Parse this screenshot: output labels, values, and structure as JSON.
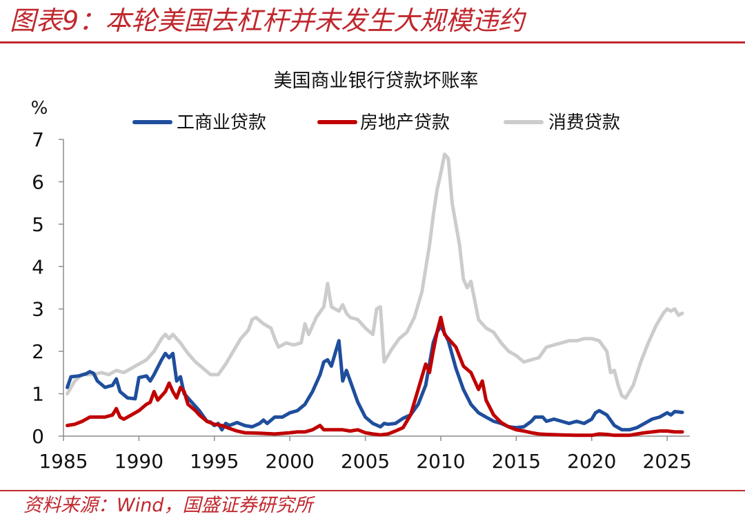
{
  "header": {
    "title": "图表9：本轮美国去杠杆并未发生大规模违约"
  },
  "footer": {
    "source": "资料来源：Wind，国盛证券研究所"
  },
  "chart_data": {
    "type": "line",
    "title": "美国商业银行贷款坏账率",
    "ylabel": "%",
    "xlabel": "",
    "xlim": [
      1985,
      2026.5
    ],
    "ylim": [
      0,
      7
    ],
    "xticks": [
      1985,
      1990,
      1995,
      2000,
      2005,
      2010,
      2015,
      2020,
      2025
    ],
    "yticks": [
      0,
      1,
      2,
      3,
      4,
      5,
      6,
      7
    ],
    "legend_position": "top",
    "grid": false,
    "series": [
      {
        "name": "工商业贷款",
        "color": "#1f4e9c",
        "points": [
          [
            1985.25,
            1.15
          ],
          [
            1985.5,
            1.4
          ],
          [
            1986.0,
            1.42
          ],
          [
            1986.5,
            1.47
          ],
          [
            1986.75,
            1.52
          ],
          [
            1987.0,
            1.48
          ],
          [
            1987.25,
            1.3
          ],
          [
            1987.75,
            1.15
          ],
          [
            1988.25,
            1.2
          ],
          [
            1988.5,
            1.35
          ],
          [
            1988.75,
            1.05
          ],
          [
            1989.25,
            0.9
          ],
          [
            1989.75,
            0.88
          ],
          [
            1990.0,
            1.38
          ],
          [
            1990.5,
            1.42
          ],
          [
            1990.75,
            1.3
          ],
          [
            1991.0,
            1.45
          ],
          [
            1991.5,
            1.8
          ],
          [
            1991.75,
            1.95
          ],
          [
            1992.0,
            1.85
          ],
          [
            1992.25,
            1.95
          ],
          [
            1992.5,
            1.3
          ],
          [
            1992.75,
            1.4
          ],
          [
            1993.0,
            1.0
          ],
          [
            1993.5,
            0.8
          ],
          [
            1994.0,
            0.6
          ],
          [
            1994.5,
            0.35
          ],
          [
            1994.75,
            0.33
          ],
          [
            1995.0,
            0.25
          ],
          [
            1995.25,
            0.3
          ],
          [
            1995.5,
            0.15
          ],
          [
            1995.75,
            0.3
          ],
          [
            1996.0,
            0.25
          ],
          [
            1996.5,
            0.32
          ],
          [
            1997.0,
            0.25
          ],
          [
            1997.5,
            0.22
          ],
          [
            1998.0,
            0.3
          ],
          [
            1998.25,
            0.38
          ],
          [
            1998.5,
            0.3
          ],
          [
            1999.0,
            0.45
          ],
          [
            1999.5,
            0.45
          ],
          [
            2000.0,
            0.55
          ],
          [
            2000.5,
            0.6
          ],
          [
            2001.0,
            0.75
          ],
          [
            2001.5,
            1.05
          ],
          [
            2002.0,
            1.45
          ],
          [
            2002.25,
            1.75
          ],
          [
            2002.5,
            1.8
          ],
          [
            2002.75,
            1.65
          ],
          [
            2003.0,
            1.95
          ],
          [
            2003.25,
            2.25
          ],
          [
            2003.5,
            1.3
          ],
          [
            2003.75,
            1.55
          ],
          [
            2004.0,
            1.3
          ],
          [
            2004.25,
            1.05
          ],
          [
            2004.5,
            0.8
          ],
          [
            2005.0,
            0.45
          ],
          [
            2005.5,
            0.3
          ],
          [
            2006.0,
            0.22
          ],
          [
            2006.25,
            0.3
          ],
          [
            2006.5,
            0.28
          ],
          [
            2007.0,
            0.3
          ],
          [
            2007.5,
            0.42
          ],
          [
            2008.0,
            0.5
          ],
          [
            2008.5,
            0.75
          ],
          [
            2009.0,
            1.2
          ],
          [
            2009.5,
            2.2
          ],
          [
            2009.75,
            2.45
          ],
          [
            2010.0,
            2.6
          ],
          [
            2010.5,
            2.25
          ],
          [
            2011.0,
            1.6
          ],
          [
            2011.5,
            1.1
          ],
          [
            2012.0,
            0.75
          ],
          [
            2012.5,
            0.55
          ],
          [
            2013.0,
            0.45
          ],
          [
            2013.5,
            0.35
          ],
          [
            2014.0,
            0.3
          ],
          [
            2014.5,
            0.22
          ],
          [
            2015.0,
            0.2
          ],
          [
            2015.5,
            0.22
          ],
          [
            2016.0,
            0.35
          ],
          [
            2016.25,
            0.45
          ],
          [
            2016.75,
            0.45
          ],
          [
            2017.0,
            0.35
          ],
          [
            2017.5,
            0.4
          ],
          [
            2018.0,
            0.35
          ],
          [
            2018.5,
            0.3
          ],
          [
            2019.0,
            0.35
          ],
          [
            2019.5,
            0.3
          ],
          [
            2020.0,
            0.4
          ],
          [
            2020.25,
            0.55
          ],
          [
            2020.5,
            0.6
          ],
          [
            2021.0,
            0.5
          ],
          [
            2021.5,
            0.25
          ],
          [
            2022.0,
            0.15
          ],
          [
            2022.5,
            0.15
          ],
          [
            2023.0,
            0.2
          ],
          [
            2023.5,
            0.3
          ],
          [
            2024.0,
            0.4
          ],
          [
            2024.5,
            0.45
          ],
          [
            2025.0,
            0.55
          ],
          [
            2025.25,
            0.5
          ],
          [
            2025.5,
            0.58
          ],
          [
            2026.0,
            0.56
          ]
        ]
      },
      {
        "name": "房地产贷款",
        "color": "#c00000",
        "points": [
          [
            1985.25,
            0.25
          ],
          [
            1985.75,
            0.28
          ],
          [
            1986.25,
            0.35
          ],
          [
            1986.75,
            0.45
          ],
          [
            1987.25,
            0.45
          ],
          [
            1987.75,
            0.45
          ],
          [
            1988.25,
            0.5
          ],
          [
            1988.5,
            0.65
          ],
          [
            1988.75,
            0.45
          ],
          [
            1989.0,
            0.4
          ],
          [
            1989.5,
            0.5
          ],
          [
            1990.0,
            0.6
          ],
          [
            1990.5,
            0.75
          ],
          [
            1990.75,
            0.8
          ],
          [
            1991.0,
            1.05
          ],
          [
            1991.25,
            0.85
          ],
          [
            1991.75,
            1.05
          ],
          [
            1992.0,
            1.25
          ],
          [
            1992.25,
            1.05
          ],
          [
            1992.5,
            0.9
          ],
          [
            1992.75,
            1.15
          ],
          [
            1993.0,
            1.05
          ],
          [
            1993.25,
            0.75
          ],
          [
            1993.75,
            0.6
          ],
          [
            1994.0,
            0.5
          ],
          [
            1994.5,
            0.35
          ],
          [
            1995.0,
            0.28
          ],
          [
            1995.5,
            0.25
          ],
          [
            1996.0,
            0.18
          ],
          [
            1996.5,
            0.12
          ],
          [
            1997.0,
            0.08
          ],
          [
            1998.0,
            0.07
          ],
          [
            1999.0,
            0.05
          ],
          [
            2000.0,
            0.08
          ],
          [
            2000.5,
            0.1
          ],
          [
            2001.0,
            0.1
          ],
          [
            2001.5,
            0.15
          ],
          [
            2002.0,
            0.25
          ],
          [
            2002.25,
            0.15
          ],
          [
            2003.0,
            0.15
          ],
          [
            2003.5,
            0.15
          ],
          [
            2004.0,
            0.12
          ],
          [
            2004.5,
            0.15
          ],
          [
            2005.0,
            0.08
          ],
          [
            2005.5,
            0.05
          ],
          [
            2006.0,
            0.03
          ],
          [
            2006.5,
            0.05
          ],
          [
            2007.0,
            0.12
          ],
          [
            2007.5,
            0.2
          ],
          [
            2008.0,
            0.5
          ],
          [
            2008.5,
            1.1
          ],
          [
            2009.0,
            1.7
          ],
          [
            2009.25,
            1.5
          ],
          [
            2009.5,
            2.0
          ],
          [
            2009.75,
            2.45
          ],
          [
            2010.0,
            2.8
          ],
          [
            2010.25,
            2.4
          ],
          [
            2010.75,
            2.2
          ],
          [
            2011.0,
            2.1
          ],
          [
            2011.5,
            1.65
          ],
          [
            2012.0,
            1.5
          ],
          [
            2012.5,
            1.1
          ],
          [
            2012.75,
            1.3
          ],
          [
            2013.0,
            0.85
          ],
          [
            2013.5,
            0.5
          ],
          [
            2014.0,
            0.32
          ],
          [
            2014.5,
            0.22
          ],
          [
            2015.0,
            0.15
          ],
          [
            2015.5,
            0.12
          ],
          [
            2016.0,
            0.08
          ],
          [
            2016.5,
            0.05
          ],
          [
            2017.0,
            0.04
          ],
          [
            2018.0,
            0.03
          ],
          [
            2019.0,
            0.02
          ],
          [
            2020.0,
            0.02
          ],
          [
            2020.5,
            0.05
          ],
          [
            2021.0,
            0.04
          ],
          [
            2021.5,
            0.02
          ],
          [
            2022.0,
            0.02
          ],
          [
            2022.5,
            0.02
          ],
          [
            2023.0,
            0.05
          ],
          [
            2023.5,
            0.08
          ],
          [
            2024.0,
            0.1
          ],
          [
            2024.5,
            0.12
          ],
          [
            2025.0,
            0.12
          ],
          [
            2025.5,
            0.1
          ],
          [
            2026.0,
            0.1
          ]
        ]
      },
      {
        "name": "消费贷款",
        "color": "#cccccc",
        "points": [
          [
            1985.25,
            1.0
          ],
          [
            1985.75,
            1.3
          ],
          [
            1986.25,
            1.45
          ],
          [
            1987.0,
            1.45
          ],
          [
            1987.5,
            1.5
          ],
          [
            1988.0,
            1.45
          ],
          [
            1988.5,
            1.55
          ],
          [
            1989.0,
            1.5
          ],
          [
            1989.5,
            1.6
          ],
          [
            1990.0,
            1.7
          ],
          [
            1990.5,
            1.8
          ],
          [
            1991.0,
            2.0
          ],
          [
            1991.5,
            2.3
          ],
          [
            1991.75,
            2.4
          ],
          [
            1992.0,
            2.3
          ],
          [
            1992.25,
            2.4
          ],
          [
            1992.75,
            2.2
          ],
          [
            1993.25,
            1.95
          ],
          [
            1993.75,
            1.75
          ],
          [
            1994.25,
            1.6
          ],
          [
            1994.75,
            1.45
          ],
          [
            1995.25,
            1.45
          ],
          [
            1995.75,
            1.7
          ],
          [
            1996.25,
            2.0
          ],
          [
            1996.75,
            2.3
          ],
          [
            1997.25,
            2.5
          ],
          [
            1997.5,
            2.75
          ],
          [
            1997.75,
            2.8
          ],
          [
            1998.25,
            2.65
          ],
          [
            1998.75,
            2.55
          ],
          [
            1999.0,
            2.3
          ],
          [
            1999.25,
            2.1
          ],
          [
            1999.75,
            2.2
          ],
          [
            2000.25,
            2.15
          ],
          [
            2000.75,
            2.2
          ],
          [
            2001.0,
            2.65
          ],
          [
            2001.25,
            2.4
          ],
          [
            2001.75,
            2.8
          ],
          [
            2002.25,
            3.05
          ],
          [
            2002.5,
            3.6
          ],
          [
            2002.75,
            3.05
          ],
          [
            2003.25,
            2.95
          ],
          [
            2003.5,
            3.1
          ],
          [
            2003.75,
            2.9
          ],
          [
            2004.0,
            2.8
          ],
          [
            2004.5,
            2.75
          ],
          [
            2005.0,
            2.55
          ],
          [
            2005.5,
            2.4
          ],
          [
            2005.75,
            3.0
          ],
          [
            2006.0,
            3.05
          ],
          [
            2006.25,
            1.75
          ],
          [
            2006.75,
            2.05
          ],
          [
            2007.25,
            2.3
          ],
          [
            2007.75,
            2.45
          ],
          [
            2008.25,
            2.8
          ],
          [
            2008.75,
            3.4
          ],
          [
            2009.25,
            4.5
          ],
          [
            2009.5,
            5.2
          ],
          [
            2009.75,
            5.8
          ],
          [
            2010.0,
            6.2
          ],
          [
            2010.25,
            6.65
          ],
          [
            2010.5,
            6.55
          ],
          [
            2010.75,
            5.5
          ],
          [
            2011.25,
            4.5
          ],
          [
            2011.5,
            3.7
          ],
          [
            2011.75,
            3.5
          ],
          [
            2012.0,
            3.65
          ],
          [
            2012.5,
            2.75
          ],
          [
            2013.0,
            2.55
          ],
          [
            2013.5,
            2.45
          ],
          [
            2014.0,
            2.2
          ],
          [
            2014.5,
            2.0
          ],
          [
            2015.0,
            1.9
          ],
          [
            2015.5,
            1.75
          ],
          [
            2016.0,
            1.8
          ],
          [
            2016.5,
            1.85
          ],
          [
            2017.0,
            2.1
          ],
          [
            2017.5,
            2.15
          ],
          [
            2018.0,
            2.2
          ],
          [
            2018.5,
            2.25
          ],
          [
            2019.0,
            2.25
          ],
          [
            2019.5,
            2.3
          ],
          [
            2020.0,
            2.3
          ],
          [
            2020.5,
            2.25
          ],
          [
            2021.0,
            2.0
          ],
          [
            2021.25,
            1.5
          ],
          [
            2021.5,
            1.55
          ],
          [
            2021.75,
            1.2
          ],
          [
            2022.0,
            0.95
          ],
          [
            2022.25,
            0.9
          ],
          [
            2022.75,
            1.2
          ],
          [
            2023.25,
            1.75
          ],
          [
            2023.75,
            2.2
          ],
          [
            2024.25,
            2.6
          ],
          [
            2024.75,
            2.9
          ],
          [
            2025.0,
            3.0
          ],
          [
            2025.25,
            2.95
          ],
          [
            2025.5,
            3.0
          ],
          [
            2025.75,
            2.85
          ],
          [
            2026.0,
            2.9
          ]
        ]
      }
    ]
  }
}
